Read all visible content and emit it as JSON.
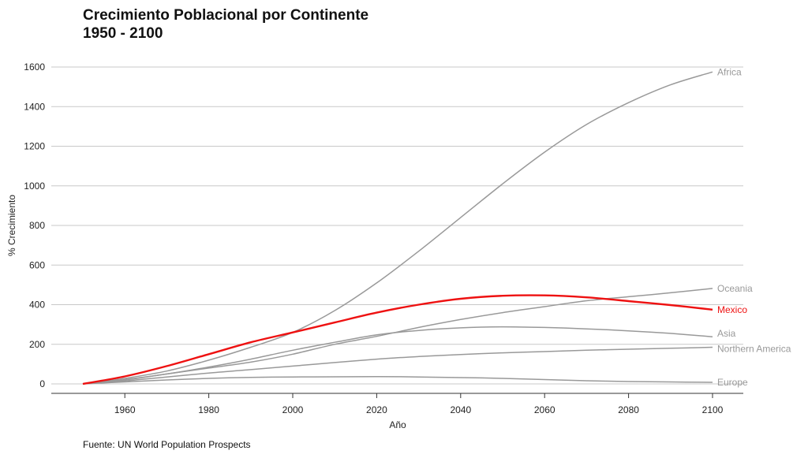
{
  "title_line1": "Crecimiento Poblacional por Continente",
  "title_line2": "1950 - 2100",
  "source": "Fuente: UN World Population Prospects",
  "colors": {
    "highlight": "#ee1111",
    "muted": "#999999",
    "grid": "#c8c8c8",
    "axis": "#333333"
  },
  "chart_data": {
    "type": "line",
    "xlabel": "Año",
    "ylabel": "% Crecimiento",
    "xlim": [
      1950,
      2100
    ],
    "ylim": [
      0,
      1600
    ],
    "xticks": [
      1960,
      1980,
      2000,
      2020,
      2040,
      2060,
      2080,
      2100
    ],
    "yticks": [
      0,
      200,
      400,
      600,
      800,
      1000,
      1200,
      1400,
      1600
    ],
    "grid": "horizontal",
    "legend": "labels at line ends",
    "x": [
      1950,
      1960,
      1970,
      1980,
      1990,
      2000,
      2010,
      2020,
      2030,
      2040,
      2050,
      2060,
      2070,
      2080,
      2090,
      2100
    ],
    "series": [
      {
        "name": "Africa",
        "highlight": false,
        "values": [
          0,
          28,
          65,
          120,
          185,
          260,
          370,
          510,
          670,
          840,
          1010,
          1170,
          1310,
          1420,
          1510,
          1575
        ]
      },
      {
        "name": "Oceania",
        "highlight": false,
        "values": [
          0,
          20,
          50,
          80,
          110,
          150,
          200,
          240,
          285,
          325,
          360,
          390,
          420,
          440,
          460,
          482
        ]
      },
      {
        "name": "Mexico",
        "highlight": true,
        "values": [
          0,
          38,
          90,
          150,
          210,
          260,
          310,
          360,
          400,
          430,
          445,
          447,
          437,
          418,
          398,
          375
        ]
      },
      {
        "name": "Asia",
        "highlight": false,
        "values": [
          0,
          22,
          50,
          85,
          125,
          170,
          210,
          248,
          270,
          283,
          288,
          285,
          278,
          268,
          255,
          238
        ]
      },
      {
        "name": "Northern America",
        "highlight": false,
        "values": [
          0,
          15,
          35,
          55,
          72,
          90,
          108,
          125,
          138,
          148,
          157,
          163,
          170,
          175,
          180,
          185
        ]
      },
      {
        "name": "Europe",
        "highlight": false,
        "values": [
          0,
          10,
          20,
          28,
          33,
          35,
          36,
          37,
          35,
          32,
          28,
          22,
          16,
          12,
          10,
          8
        ]
      }
    ]
  }
}
